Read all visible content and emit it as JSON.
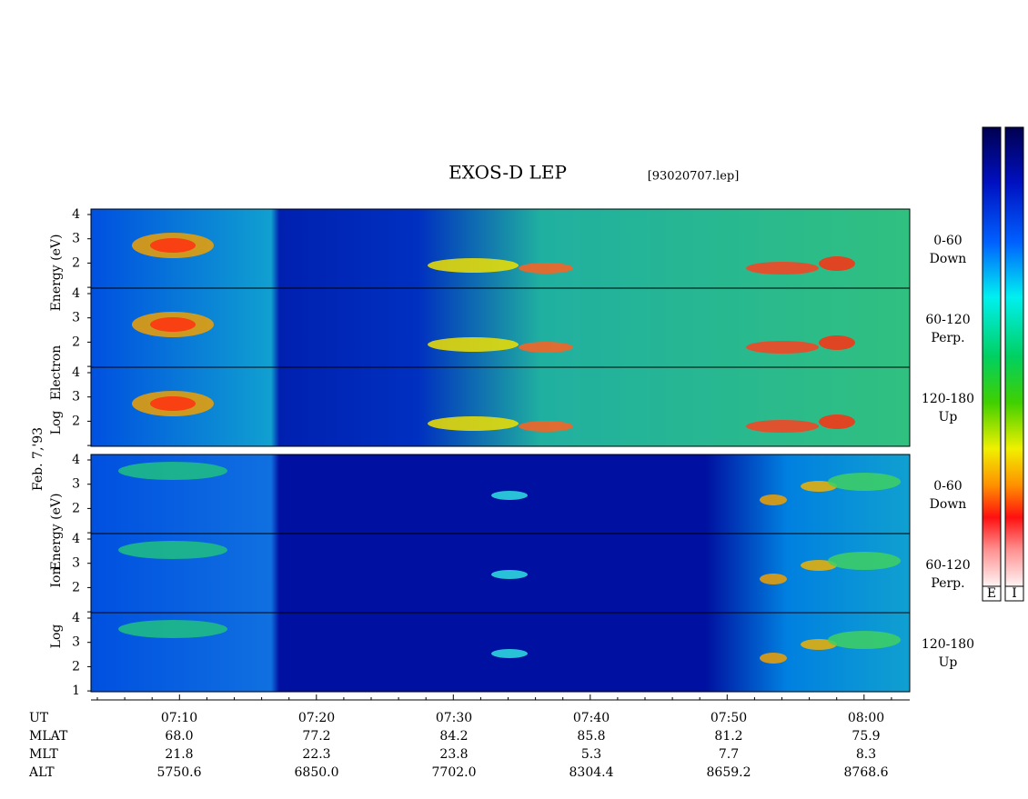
{
  "title": "EXOS-D LEP",
  "file": "[93020707.lep]",
  "date": "Feb. 7,'93",
  "groups": [
    {
      "axis_label": [
        "Log",
        "Electron",
        "Energy (eV)"
      ],
      "panels": [
        {
          "ticks": [
            "4",
            "3",
            "2"
          ],
          "angle": [
            "0-60",
            "Down"
          ]
        },
        {
          "ticks": [
            "4",
            "3",
            "2"
          ],
          "angle": [
            "60-120",
            "Perp."
          ]
        },
        {
          "ticks": [
            "4",
            "3",
            "2"
          ],
          "angle": [
            "120-180",
            "Up"
          ]
        }
      ]
    },
    {
      "axis_label": [
        "Log",
        "Ion",
        "Energy (eV)"
      ],
      "panels": [
        {
          "ticks": [
            "4",
            "3",
            "2"
          ],
          "angle": [
            "0-60",
            "Down"
          ]
        },
        {
          "ticks": [
            "4",
            "3",
            "2"
          ],
          "angle": [
            "60-120",
            "Perp."
          ]
        },
        {
          "ticks": [
            "4",
            "3",
            "2",
            "1"
          ],
          "angle": [
            "120-180",
            "Up"
          ]
        }
      ]
    }
  ],
  "colorbars": [
    "E",
    "I"
  ],
  "rows": [
    {
      "label": "UT",
      "values": [
        "07:10",
        "07:20",
        "07:30",
        "07:40",
        "07:50",
        "08:00"
      ]
    },
    {
      "label": "MLAT",
      "values": [
        "68.0",
        "77.2",
        "84.2",
        "85.8",
        "81.2",
        "75.9"
      ]
    },
    {
      "label": "MLT",
      "values": [
        "21.8",
        "22.3",
        "23.8",
        "5.3",
        "7.7",
        "8.3"
      ]
    },
    {
      "label": "ALT",
      "values": [
        "5750.6",
        "6850.0",
        "7702.0",
        "8304.4",
        "8659.2",
        "8768.6"
      ]
    }
  ]
}
